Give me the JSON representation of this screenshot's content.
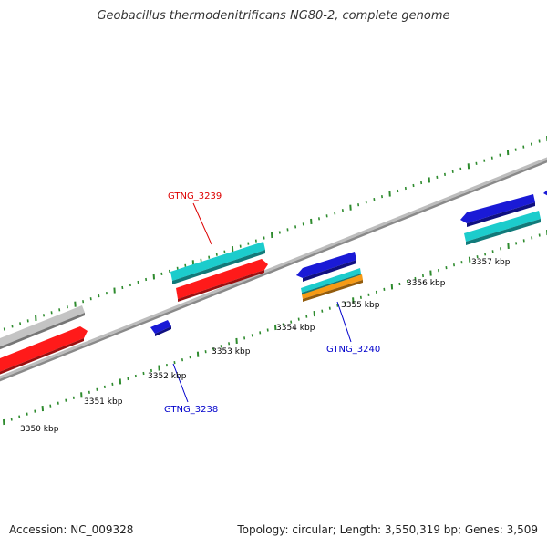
{
  "header": {
    "title": "Geobacillus thermodenitrificans NG80-2, complete genome"
  },
  "footer": {
    "accession": "Accession: NC_009328",
    "summary": "Topology: circular; Length: 3,550,319 bp; Genes: 3,509"
  },
  "colors": {
    "backbone": "#8a8a8a",
    "tick": "#2e8b2e",
    "forward_label": "#dd0000",
    "reverse_label": "#0000cc",
    "feature_grey": "#c4c4c4",
    "feature_red": "#ff1a1a",
    "feature_cyan": "#1ccccc",
    "feature_blue": "#1a1ad6",
    "feature_orange": "#f59a16"
  },
  "scale_labels": [
    {
      "kbp": 3350,
      "text": "3350 kbp"
    },
    {
      "kbp": 3351,
      "text": "3351 kbp"
    },
    {
      "kbp": 3352,
      "text": "3352 kbp"
    },
    {
      "kbp": 3353,
      "text": "3353 kbp"
    },
    {
      "kbp": 3354,
      "text": "3354 kbp"
    },
    {
      "kbp": 3355,
      "text": "3355 kbp"
    },
    {
      "kbp": 3356,
      "text": "3356 kbp"
    },
    {
      "kbp": 3357,
      "text": "3357 kbp"
    }
  ],
  "gene_labels": [
    {
      "text": "GTNG_3239",
      "strand": "forward"
    },
    {
      "text": "GTNG_3240",
      "strand": "reverse"
    },
    {
      "text": "GTNG_3238",
      "strand": "reverse"
    }
  ]
}
